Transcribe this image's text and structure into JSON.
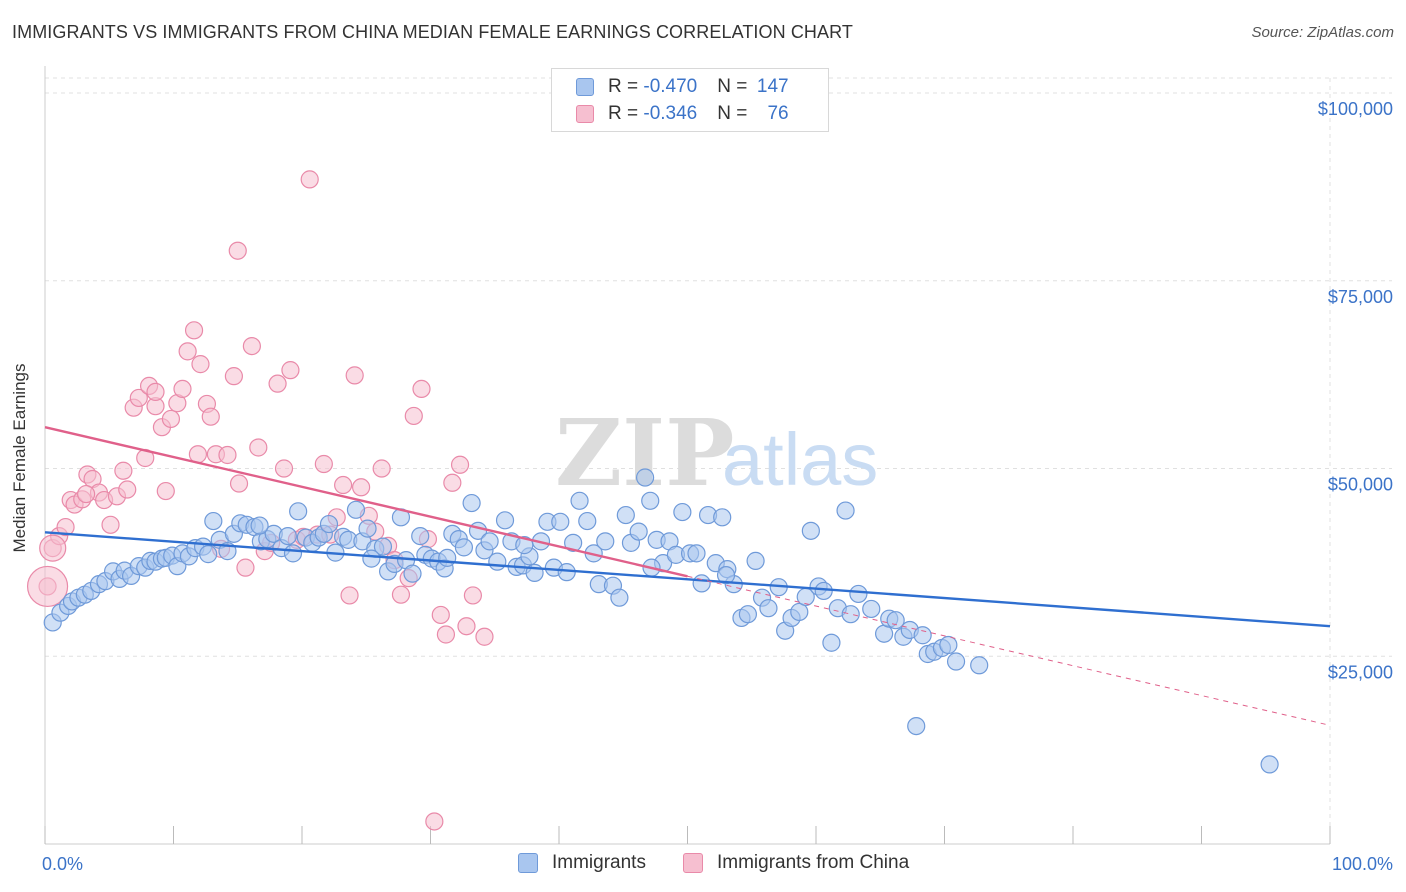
{
  "title": "IMMIGRANTS VS IMMIGRANTS FROM CHINA MEDIAN FEMALE EARNINGS CORRELATION CHART",
  "source": "Source: ZipAtlas.com",
  "watermark": {
    "zip": "ZIP",
    "atlas": "atlas"
  },
  "colors": {
    "blue_fill": "#a9c6ef",
    "blue_stroke": "#6f9ad9",
    "blue_line": "#2f6fd0",
    "pink_fill": "#f6bfd0",
    "pink_stroke": "#e98aa9",
    "pink_line": "#e0608a",
    "axis_text": "#3b73c8",
    "grid": "#e0e0e0"
  },
  "legend": {
    "rows": [
      {
        "r_label": "R = ",
        "r_value": "-0.470",
        "n_label": "N = ",
        "n_value": "147",
        "series": "blue"
      },
      {
        "r_label": "R = ",
        "r_value": "-0.346",
        "n_label": "N = ",
        "n_value": "76",
        "series": "pink"
      }
    ]
  },
  "bottom_legend": [
    "Immigrants",
    "Immigrants from China"
  ],
  "chart_data": {
    "type": "scatter",
    "title": "IMMIGRANTS VS IMMIGRANTS FROM CHINA MEDIAN FEMALE EARNINGS CORRELATION CHART",
    "xlabel": "",
    "ylabel": "Median Female Earnings",
    "xlim": [
      0,
      100
    ],
    "ylim": [
      0,
      102000
    ],
    "y_ticks": [
      {
        "value": 25000,
        "label": "$25,000"
      },
      {
        "value": 50000,
        "label": "$50,000"
      },
      {
        "value": 75000,
        "label": "$75,000"
      },
      {
        "value": 100000,
        "label": "$100,000"
      }
    ],
    "x_tick_labels": {
      "left": "0.0%",
      "right": "100.0%"
    },
    "x_minor_ticks": [
      0,
      10,
      20,
      30,
      40,
      50,
      60,
      70,
      80,
      90,
      100
    ],
    "grid": true,
    "series": [
      {
        "name": "Immigrants",
        "color": "blue",
        "trend": {
          "x": [
            0,
            100
          ],
          "y": [
            41500,
            29000
          ],
          "solid_until": 100
        },
        "points": [
          [
            0.6,
            29500
          ],
          [
            1.2,
            30800
          ],
          [
            1.8,
            31700
          ],
          [
            2.1,
            32300
          ],
          [
            2.6,
            32800
          ],
          [
            3.1,
            33200
          ],
          [
            3.6,
            33700
          ],
          [
            4.2,
            34600
          ],
          [
            4.7,
            35000
          ],
          [
            5.3,
            36300
          ],
          [
            5.8,
            35300
          ],
          [
            6.2,
            36400
          ],
          [
            6.7,
            35700
          ],
          [
            7.3,
            37000
          ],
          [
            7.8,
            36800
          ],
          [
            8.2,
            37700
          ],
          [
            8.6,
            37600
          ],
          [
            9.1,
            38000
          ],
          [
            9.4,
            38100
          ],
          [
            9.9,
            38400
          ],
          [
            10.3,
            37000
          ],
          [
            10.7,
            38700
          ],
          [
            11.2,
            38300
          ],
          [
            11.7,
            39400
          ],
          [
            12.3,
            39600
          ],
          [
            13.1,
            43000
          ],
          [
            13.6,
            40500
          ],
          [
            14.2,
            39000
          ],
          [
            14.7,
            41300
          ],
          [
            15.2,
            42700
          ],
          [
            15.7,
            42500
          ],
          [
            16.3,
            42200
          ],
          [
            16.8,
            40300
          ],
          [
            17.3,
            40600
          ],
          [
            17.8,
            41300
          ],
          [
            18.4,
            39400
          ],
          [
            18.9,
            41000
          ],
          [
            19.3,
            38700
          ],
          [
            19.7,
            44300
          ],
          [
            20.3,
            40800
          ],
          [
            20.8,
            40100
          ],
          [
            21.3,
            40800
          ],
          [
            21.7,
            41300
          ],
          [
            22.1,
            42600
          ],
          [
            22.6,
            38800
          ],
          [
            23.2,
            40900
          ],
          [
            23.6,
            40500
          ],
          [
            24.2,
            44500
          ],
          [
            24.7,
            40300
          ],
          [
            25.1,
            42000
          ],
          [
            25.7,
            39300
          ],
          [
            26.3,
            39600
          ],
          [
            26.7,
            36300
          ],
          [
            27.2,
            37300
          ],
          [
            27.7,
            43500
          ],
          [
            28.1,
            37800
          ],
          [
            28.6,
            36000
          ],
          [
            29.2,
            41000
          ],
          [
            29.6,
            38500
          ],
          [
            30.1,
            38000
          ],
          [
            30.6,
            37600
          ],
          [
            31.1,
            36700
          ],
          [
            31.7,
            41300
          ],
          [
            32.2,
            40600
          ],
          [
            32.6,
            39500
          ],
          [
            33.2,
            45400
          ],
          [
            33.7,
            41700
          ],
          [
            34.2,
            39100
          ],
          [
            34.6,
            40300
          ],
          [
            35.2,
            37600
          ],
          [
            35.8,
            43100
          ],
          [
            36.3,
            40300
          ],
          [
            36.7,
            36900
          ],
          [
            37.2,
            37100
          ],
          [
            37.7,
            38300
          ],
          [
            38.1,
            36100
          ],
          [
            38.6,
            40300
          ],
          [
            39.1,
            42900
          ],
          [
            39.6,
            36800
          ],
          [
            40.1,
            42900
          ],
          [
            40.6,
            36200
          ],
          [
            41.1,
            40100
          ],
          [
            41.6,
            45700
          ],
          [
            42.2,
            43000
          ],
          [
            42.7,
            38700
          ],
          [
            43.1,
            34600
          ],
          [
            43.6,
            40300
          ],
          [
            44.2,
            34400
          ],
          [
            44.7,
            32800
          ],
          [
            45.2,
            43800
          ],
          [
            45.6,
            40100
          ],
          [
            46.2,
            41600
          ],
          [
            46.7,
            48800
          ],
          [
            47.1,
            45700
          ],
          [
            47.6,
            40500
          ],
          [
            48.1,
            37400
          ],
          [
            48.6,
            40300
          ],
          [
            49.1,
            38500
          ],
          [
            49.6,
            44200
          ],
          [
            50.2,
            38700
          ],
          [
            50.7,
            38700
          ],
          [
            51.1,
            34700
          ],
          [
            51.6,
            43800
          ],
          [
            52.2,
            37400
          ],
          [
            52.7,
            43500
          ],
          [
            53.1,
            36600
          ],
          [
            53.6,
            34600
          ],
          [
            54.2,
            30100
          ],
          [
            54.7,
            30600
          ],
          [
            55.3,
            37700
          ],
          [
            55.8,
            32800
          ],
          [
            56.3,
            31400
          ],
          [
            57.1,
            34200
          ],
          [
            57.6,
            28400
          ],
          [
            58.1,
            30100
          ],
          [
            58.7,
            30900
          ],
          [
            59.2,
            32900
          ],
          [
            59.6,
            41700
          ],
          [
            60.2,
            34300
          ],
          [
            60.6,
            33700
          ],
          [
            61.2,
            26800
          ],
          [
            61.7,
            31400
          ],
          [
            62.3,
            44400
          ],
          [
            62.7,
            30600
          ],
          [
            63.3,
            33300
          ],
          [
            64.3,
            31300
          ],
          [
            65.3,
            28000
          ],
          [
            65.7,
            30000
          ],
          [
            66.2,
            29800
          ],
          [
            66.8,
            27600
          ],
          [
            67.3,
            28500
          ],
          [
            67.8,
            15700
          ],
          [
            68.3,
            27800
          ],
          [
            68.7,
            25300
          ],
          [
            69.2,
            25600
          ],
          [
            69.8,
            26100
          ],
          [
            70.3,
            26500
          ],
          [
            70.9,
            24300
          ],
          [
            72.7,
            23800
          ],
          [
            95.3,
            10600
          ],
          [
            16.7,
            42400
          ],
          [
            12.7,
            38600
          ],
          [
            25.4,
            38000
          ],
          [
            37.3,
            39800
          ],
          [
            53.0,
            35800
          ],
          [
            47.2,
            36800
          ],
          [
            31.3,
            38100
          ]
        ]
      },
      {
        "name": "Immigrants from China",
        "color": "pink",
        "trend": {
          "x": [
            0,
            100
          ],
          "y": [
            55500,
            15800
          ],
          "solid_until": 50
        },
        "points": [
          [
            0.2,
            34300
          ],
          [
            0.6,
            39400
          ],
          [
            1.1,
            41000
          ],
          [
            1.6,
            42200
          ],
          [
            2.0,
            45800
          ],
          [
            2.3,
            45200
          ],
          [
            2.9,
            45900
          ],
          [
            3.3,
            49200
          ],
          [
            3.7,
            48600
          ],
          [
            4.2,
            46800
          ],
          [
            4.6,
            45800
          ],
          [
            5.1,
            42500
          ],
          [
            5.6,
            46300
          ],
          [
            6.1,
            49700
          ],
          [
            6.4,
            47200
          ],
          [
            6.9,
            58100
          ],
          [
            7.3,
            59400
          ],
          [
            7.8,
            51400
          ],
          [
            8.1,
            61000
          ],
          [
            8.6,
            58300
          ],
          [
            9.1,
            55500
          ],
          [
            9.4,
            47000
          ],
          [
            9.8,
            56600
          ],
          [
            10.3,
            58700
          ],
          [
            10.7,
            60600
          ],
          [
            11.1,
            65600
          ],
          [
            11.6,
            68400
          ],
          [
            12.1,
            63900
          ],
          [
            12.6,
            58600
          ],
          [
            12.9,
            56900
          ],
          [
            13.3,
            51900
          ],
          [
            13.7,
            39300
          ],
          [
            14.2,
            51800
          ],
          [
            14.7,
            62300
          ],
          [
            15.1,
            48000
          ],
          [
            15.6,
            36800
          ],
          [
            16.1,
            66300
          ],
          [
            16.6,
            52800
          ],
          [
            17.1,
            39000
          ],
          [
            17.6,
            40100
          ],
          [
            18.1,
            61300
          ],
          [
            18.6,
            50000
          ],
          [
            19.1,
            63100
          ],
          [
            19.6,
            40500
          ],
          [
            20.1,
            40900
          ],
          [
            20.6,
            88500
          ],
          [
            21.2,
            41200
          ],
          [
            21.7,
            50600
          ],
          [
            22.2,
            41200
          ],
          [
            22.7,
            43500
          ],
          [
            23.2,
            47800
          ],
          [
            23.7,
            33100
          ],
          [
            24.1,
            62400
          ],
          [
            24.6,
            47500
          ],
          [
            25.2,
            43700
          ],
          [
            25.7,
            41600
          ],
          [
            26.2,
            50000
          ],
          [
            26.7,
            39700
          ],
          [
            27.2,
            37800
          ],
          [
            27.7,
            33200
          ],
          [
            28.3,
            35400
          ],
          [
            28.7,
            57000
          ],
          [
            29.3,
            60600
          ],
          [
            29.8,
            40600
          ],
          [
            30.3,
            3000
          ],
          [
            30.8,
            30500
          ],
          [
            31.2,
            27900
          ],
          [
            31.7,
            48100
          ],
          [
            32.3,
            50500
          ],
          [
            32.8,
            29000
          ],
          [
            33.3,
            33100
          ],
          [
            34.2,
            27600
          ],
          [
            15.0,
            79000
          ],
          [
            8.6,
            60200
          ],
          [
            3.2,
            46600
          ],
          [
            11.9,
            51900
          ]
        ]
      }
    ]
  }
}
